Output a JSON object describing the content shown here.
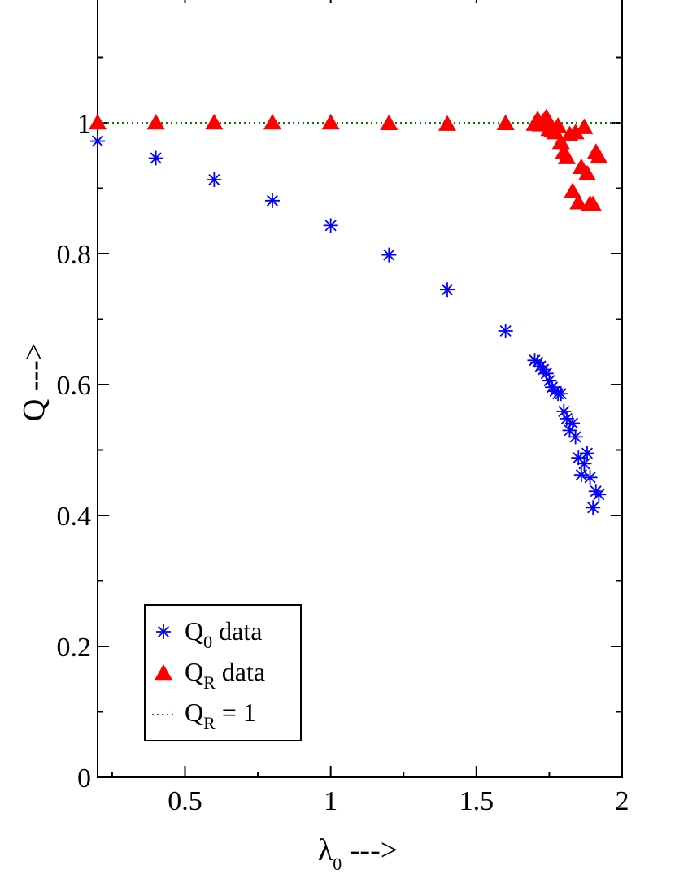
{
  "chart_data": {
    "type": "scatter",
    "xlabel": {
      "base": "λ",
      "sub": "0",
      "suffix": " --->"
    },
    "ylabel": "Q --->",
    "xlim": [
      0.2,
      2.0
    ],
    "ylim": [
      0,
      1.2
    ],
    "x_ticks": [
      0.5,
      1,
      1.5,
      2
    ],
    "x_tick_labels": [
      "0.5",
      "1",
      "1.5",
      "2"
    ],
    "y_ticks": [
      0,
      0.2,
      0.4,
      0.6,
      0.8,
      1
    ],
    "y_tick_labels": [
      "0",
      "0.2",
      "0.4",
      "0.6",
      "0.8",
      "1"
    ],
    "grid": false,
    "legend_position": "bottom-left",
    "series": [
      {
        "name": "Q0 data",
        "label": {
          "base": "Q",
          "sub": "0",
          "suffix": " data"
        },
        "marker": "asterisk",
        "color": "#0000ff",
        "points": [
          [
            0.2,
            0.972
          ],
          [
            0.4,
            0.946
          ],
          [
            0.6,
            0.913
          ],
          [
            0.8,
            0.881
          ],
          [
            1.0,
            0.843
          ],
          [
            1.2,
            0.798
          ],
          [
            1.4,
            0.745
          ],
          [
            1.6,
            0.682
          ],
          [
            1.7,
            0.637
          ],
          [
            1.71,
            0.634
          ],
          [
            1.72,
            0.628
          ],
          [
            1.73,
            0.623
          ],
          [
            1.74,
            0.617
          ],
          [
            1.75,
            0.606
          ],
          [
            1.76,
            0.596
          ],
          [
            1.77,
            0.59
          ],
          [
            1.78,
            0.586
          ],
          [
            1.79,
            0.586
          ],
          [
            1.8,
            0.559
          ],
          [
            1.81,
            0.548
          ],
          [
            1.82,
            0.53
          ],
          [
            1.83,
            0.541
          ],
          [
            1.84,
            0.52
          ],
          [
            1.85,
            0.488
          ],
          [
            1.86,
            0.462
          ],
          [
            1.87,
            0.479
          ],
          [
            1.88,
            0.495
          ],
          [
            1.89,
            0.458
          ],
          [
            1.9,
            0.412
          ],
          [
            1.91,
            0.437
          ],
          [
            1.92,
            0.432
          ]
        ]
      },
      {
        "name": "QR data",
        "label": {
          "base": "Q",
          "sub": "R",
          "suffix": " data"
        },
        "marker": "triangle",
        "color": "#ff0000",
        "points": [
          [
            0.2,
            1.0
          ],
          [
            0.4,
            1.0
          ],
          [
            0.6,
            1.0
          ],
          [
            0.8,
            1.0
          ],
          [
            1.0,
            1.0
          ],
          [
            1.2,
            0.999
          ],
          [
            1.4,
            0.998
          ],
          [
            1.6,
            0.999
          ],
          [
            1.7,
            0.998
          ],
          [
            1.71,
            1.005
          ],
          [
            1.72,
            0.997
          ],
          [
            1.73,
            1.002
          ],
          [
            1.74,
            1.008
          ],
          [
            1.75,
            0.99
          ],
          [
            1.76,
            0.988
          ],
          [
            1.77,
            0.985
          ],
          [
            1.78,
            0.995
          ],
          [
            1.79,
            0.97
          ],
          [
            1.8,
            0.955
          ],
          [
            1.81,
            0.947
          ],
          [
            1.82,
            0.982
          ],
          [
            1.83,
            0.895
          ],
          [
            1.84,
            0.985
          ],
          [
            1.85,
            0.878
          ],
          [
            1.86,
            0.932
          ],
          [
            1.87,
            0.993
          ],
          [
            1.88,
            0.922
          ],
          [
            1.89,
            0.876
          ],
          [
            1.9,
            0.875
          ],
          [
            1.91,
            0.955
          ],
          [
            1.92,
            0.948
          ]
        ]
      },
      {
        "name": "QR = 1",
        "label": {
          "base": "Q",
          "sub": "R",
          "suffix": " = 1"
        },
        "marker": "line",
        "style": "dotted",
        "color": "#008000",
        "points": [
          [
            0.2,
            1.0
          ],
          [
            2.0,
            1.0
          ]
        ]
      }
    ]
  }
}
